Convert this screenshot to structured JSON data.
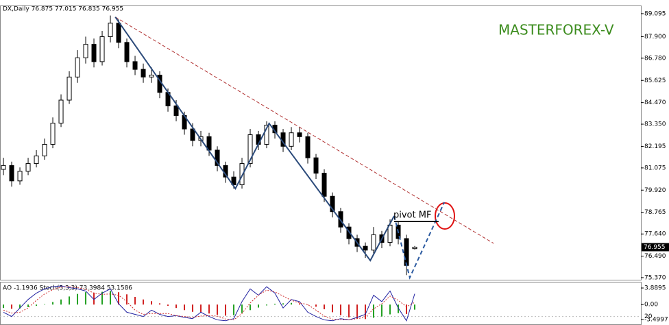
{
  "chart_data": {
    "type": "candlestick",
    "title": "MASTERFOREX-V",
    "header": "DX,Daily  76.875 77.015 76.835 76.955",
    "xlim": [
      -0.42,
      77.5
    ],
    "ylim": [
      75.26,
      89.52
    ],
    "yticks": [
      89.095,
      {
        "value": 87.9,
        "label": "87.900"
      },
      {
        "value": 86.78,
        "label": "86.780"
      },
      85.625,
      {
        "value": 84.47,
        "label": "84.470"
      },
      {
        "value": 83.35,
        "label": "83.350"
      },
      82.195,
      81.075,
      {
        "value": 79.92,
        "label": "79.920"
      },
      78.765,
      {
        "value": 77.64,
        "label": "77.640"
      },
      {
        "value": 76.49,
        "label": "76.490"
      },
      {
        "value": 75.37,
        "label": "75.370"
      }
    ],
    "current_price": 76.955,
    "open": [
      81.0,
      81.2,
      80.4,
      80.9,
      81.3,
      81.7,
      82.3,
      83.4,
      84.6,
      85.8,
      86.8,
      87.5,
      86.6,
      87.9,
      88.6,
      87.6,
      86.6,
      86.2,
      85.8,
      85.9,
      85.0,
      84.3,
      83.8,
      83.1,
      82.5,
      82.7,
      82.0,
      81.2,
      80.6,
      80.2,
      81.3,
      82.8,
      82.3,
      83.3,
      82.9,
      82.2,
      82.9,
      82.7,
      81.6,
      80.8,
      79.6,
      78.8,
      78.0,
      77.4,
      77.0,
      76.8,
      77.6,
      77.2,
      78.1,
      77.4,
      76.875
    ],
    "high": [
      81.6,
      81.4,
      81.1,
      81.6,
      82.0,
      82.6,
      83.7,
      84.9,
      86.1,
      87.2,
      87.9,
      87.8,
      88.2,
      89.0,
      88.8,
      87.8,
      86.9,
      86.5,
      86.3,
      86.1,
      85.2,
      84.6,
      84.0,
      83.4,
      83.0,
      82.9,
      82.2,
      81.4,
      80.9,
      81.6,
      83.1,
      83.0,
      83.5,
      83.5,
      83.1,
      83.2,
      83.2,
      82.9,
      81.8,
      81.0,
      79.8,
      79.0,
      78.2,
      77.6,
      77.2,
      78.0,
      77.8,
      78.4,
      78.3,
      77.6,
      77.015
    ],
    "low": [
      80.7,
      80.1,
      80.2,
      80.7,
      81.1,
      81.5,
      82.1,
      83.2,
      84.4,
      85.5,
      86.5,
      86.3,
      86.4,
      87.6,
      87.3,
      86.3,
      85.9,
      85.5,
      85.5,
      84.7,
      84.0,
      83.5,
      82.8,
      82.2,
      82.2,
      81.7,
      80.9,
      80.3,
      80.0,
      80.0,
      81.1,
      82.0,
      82.1,
      82.6,
      81.9,
      82.0,
      82.4,
      81.3,
      80.5,
      79.3,
      78.5,
      77.7,
      77.1,
      76.7,
      76.4,
      76.6,
      76.9,
      77.0,
      77.1,
      75.5,
      76.835
    ],
    "close": [
      81.2,
      80.4,
      80.9,
      81.3,
      81.7,
      82.3,
      83.4,
      84.6,
      85.8,
      86.8,
      87.5,
      86.6,
      87.9,
      88.6,
      87.6,
      86.6,
      86.2,
      85.8,
      85.9,
      85.0,
      84.3,
      83.8,
      83.1,
      82.5,
      82.7,
      82.0,
      81.2,
      80.6,
      80.2,
      81.3,
      82.8,
      82.3,
      83.3,
      82.9,
      82.2,
      82.9,
      82.7,
      81.6,
      80.8,
      79.6,
      78.8,
      78.0,
      77.4,
      77.0,
      76.8,
      77.6,
      77.2,
      78.1,
      77.4,
      76.0,
      76.955
    ],
    "zigzag": {
      "color": "#2b4a7a",
      "x": [
        13.6,
        28.2,
        32.3,
        44.6,
        47.5
      ],
      "values": [
        88.92,
        80.0,
        83.39,
        76.26,
        78.58
      ]
    },
    "projection": {
      "color": "#2b5aa0",
      "x": [
        47.5,
        49.4,
        53.6
      ],
      "values": [
        78.58,
        75.37,
        79.29
      ]
    },
    "trendline": {
      "color": "#b03030",
      "x": [
        13.6,
        59.6
      ],
      "values": [
        88.92,
        77.15
      ]
    },
    "pivot": {
      "label": "pivot MF",
      "color": "#000000",
      "x": [
        47.5,
        52.9
      ],
      "values": [
        78.29,
        78.29
      ]
    },
    "indicator": {
      "header": "AO -1.1936  Stoch(5,3,3) 73.3984 53.1586",
      "ylim": [
        -4.79,
        5.18
      ],
      "yticks": [
        3.8895,
        {
          "value": 0,
          "label": "0.00"
        },
        -3.4997
      ],
      "y2lim": [
        0,
        100
      ],
      "y2ticks": [
        20
      ],
      "ao": [
        -0.8,
        -1.0,
        -0.9,
        -0.6,
        -0.3,
        0.1,
        0.6,
        1.2,
        1.9,
        2.5,
        2.9,
        2.8,
        3.0,
        3.2,
        2.9,
        2.4,
        1.8,
        1.2,
        0.8,
        0.3,
        -0.3,
        -0.8,
        -1.3,
        -1.7,
        -1.9,
        -2.1,
        -2.4,
        -2.6,
        -2.5,
        -2.0,
        -1.3,
        -0.7,
        -0.2,
        0.2,
        0.3,
        0.4,
        0.3,
        0.0,
        -0.5,
        -1.1,
        -1.8,
        -2.5,
        -3.0,
        -3.3,
        -3.4,
        -3.1,
        -2.8,
        -2.3,
        -2.0,
        -2.2,
        -1.1936
      ],
      "series": [
        {
          "color": "#2020a0",
          "values": [
            30,
            20,
            40,
            60,
            75,
            85,
            90,
            92,
            88,
            85,
            80,
            60,
            75,
            85,
            50,
            30,
            25,
            20,
            35,
            25,
            20,
            22,
            18,
            15,
            30,
            20,
            12,
            10,
            15,
            55,
            85,
            70,
            90,
            75,
            40,
            60,
            55,
            30,
            20,
            12,
            10,
            15,
            12,
            18,
            25,
            70,
            55,
            80,
            40,
            10,
            73.3984
          ]
        },
        {
          "color": "#d03030",
          "values": [
            35,
            28,
            30,
            40,
            58,
            73,
            83,
            89,
            90,
            88,
            84,
            75,
            72,
            73,
            70,
            55,
            35,
            25,
            27,
            27,
            27,
            22,
            20,
            18,
            21,
            22,
            21,
            14,
            12,
            27,
            52,
            70,
            82,
            78,
            68,
            58,
            52,
            48,
            35,
            21,
            14,
            12,
            12,
            15,
            18,
            38,
            50,
            68,
            58,
            43,
            53.1586
          ]
        }
      ]
    }
  }
}
